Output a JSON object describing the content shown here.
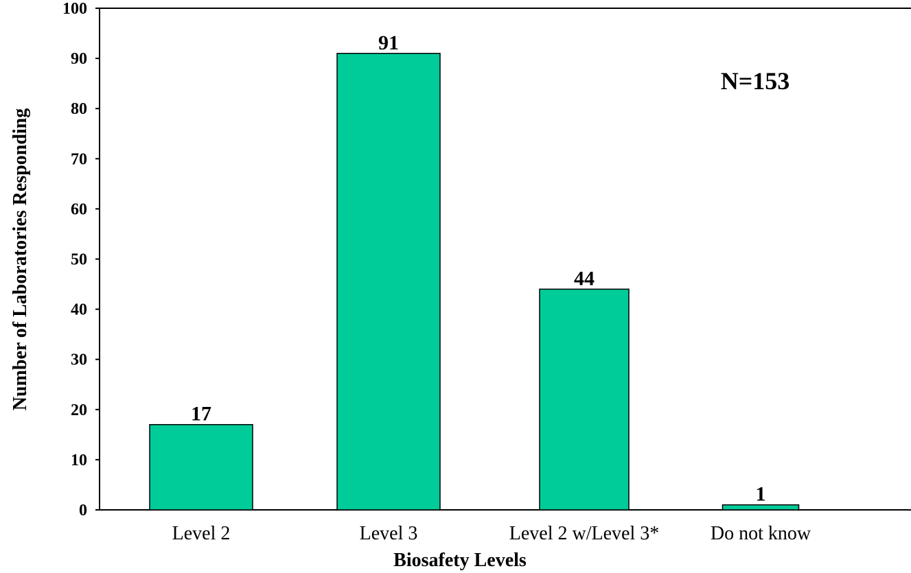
{
  "chart_data": {
    "type": "bar",
    "x_label": "Biosafety Levels",
    "y_label": "Number of Laboratories Responding",
    "annotation": "N=153",
    "categories": [
      "Level 2",
      "Level 3",
      "Level 2 w/Level 3*",
      "Do not know"
    ],
    "values": [
      17,
      91,
      44,
      1
    ],
    "color": "#00cc99",
    "ylim": [
      0,
      100
    ],
    "yticks": [
      0,
      10,
      20,
      30,
      40,
      50,
      60,
      70,
      80,
      90,
      100
    ]
  }
}
